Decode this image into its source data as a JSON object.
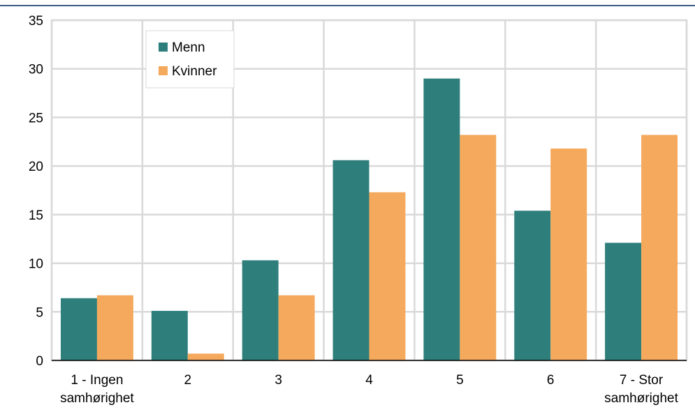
{
  "chart_data": {
    "type": "bar",
    "categories": [
      [
        "1 - Ingen",
        "samhørighet"
      ],
      [
        "2"
      ],
      [
        "3"
      ],
      [
        "4"
      ],
      [
        "5"
      ],
      [
        "6"
      ],
      [
        "7 - Stor",
        "samhørighet"
      ]
    ],
    "series": [
      {
        "name": "Menn",
        "color": "#2e7f7c",
        "values": [
          6.4,
          5.1,
          10.3,
          20.6,
          29.0,
          15.4,
          12.1
        ]
      },
      {
        "name": "Kvinner",
        "color": "#f5a95c",
        "values": [
          6.7,
          0.7,
          6.7,
          17.3,
          23.2,
          21.8,
          23.2
        ]
      }
    ],
    "ylim": [
      0,
      35
    ],
    "yticks": [
      0,
      5,
      10,
      15,
      20,
      25,
      30,
      35
    ],
    "grid": true,
    "legend_position": "top-left",
    "title": "",
    "xlabel": "",
    "ylabel": ""
  }
}
